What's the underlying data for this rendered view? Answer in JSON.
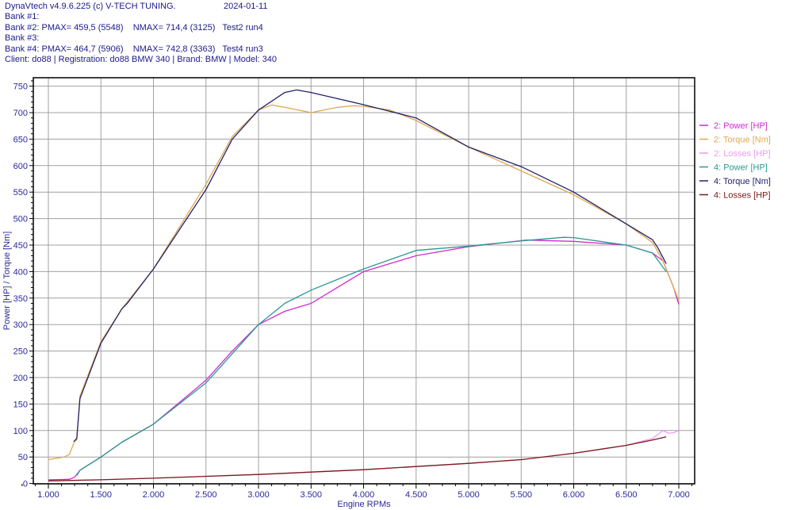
{
  "header": {
    "title": "DynaVtech v4.9.6.225 (c) V-TECH TUNING.",
    "date": "2024-01-11",
    "lines": [
      "Bank #1:",
      "Bank #2: PMAX= 459,5 (5548)    NMAX= 714,4 (3125)   Test2 run4",
      "Bank #3:",
      "Bank #4: PMAX= 464,7 (5906)    NMAX= 742,8 (3363)   Test4 run3",
      "Client: do88 | Registration: do88 BMW 340 | Brand: BMW | Model: 340"
    ]
  },
  "chart_data": {
    "type": "line",
    "xlabel": "Engine RPMs",
    "ylabel": "Power [HP] / Torque [Nm]",
    "xlim": [
      1000,
      7000
    ],
    "ylim": [
      0,
      750
    ],
    "xticks": [
      1000,
      1500,
      2000,
      2500,
      3000,
      3500,
      4000,
      4500,
      5000,
      5500,
      6000,
      6500,
      7000
    ],
    "xtick_labels": [
      "1.000",
      "1.500",
      "2.000",
      "2.500",
      "3.000",
      "3.500",
      "4.000",
      "4.500",
      "5.000",
      "5.500",
      "6.000",
      "6.500",
      "7.000"
    ],
    "yticks": [
      0,
      50,
      100,
      150,
      200,
      250,
      300,
      350,
      400,
      450,
      500,
      550,
      600,
      650,
      700,
      750
    ],
    "grid": true,
    "legend_position": "right",
    "series": [
      {
        "name": "2: Power [HP]",
        "color": "#d22bd2",
        "x": [
          1000,
          1200,
          1250,
          1300,
          1500,
          1700,
          2000,
          2500,
          2750,
          3000,
          3250,
          3500,
          3750,
          4000,
          4500,
          5000,
          5548,
          6000,
          6500,
          6750,
          6850,
          6950,
          7000
        ],
        "y": [
          7,
          8,
          12,
          25,
          50,
          78,
          112,
          195,
          250,
          300,
          325,
          340,
          370,
          400,
          430,
          447,
          459.5,
          457,
          450,
          435,
          420,
          370,
          338
        ]
      },
      {
        "name": "2: Torque [Nm]",
        "color": "#e0a850",
        "x": [
          1000,
          1150,
          1200,
          1250,
          1270,
          1300,
          1500,
          1700,
          2000,
          2500,
          2750,
          3000,
          3125,
          3250,
          3500,
          3750,
          3900,
          4000,
          4250,
          4500,
          5000,
          5500,
          6000,
          6500,
          6750,
          6850,
          6950,
          7000
        ],
        "y": [
          45,
          50,
          55,
          80,
          82,
          165,
          268,
          330,
          405,
          565,
          655,
          705,
          714.4,
          710,
          700,
          710,
          713,
          712,
          705,
          685,
          635,
          590,
          545,
          490,
          455,
          420,
          370,
          345
        ]
      },
      {
        "name": "2: Losses [HP]",
        "color": "#ee99ee",
        "x": [
          1000,
          1500,
          2000,
          3000,
          4000,
          5000,
          5500,
          6000,
          6500,
          6750,
          6800,
          6850,
          6900,
          6950,
          7000
        ],
        "y": [
          5,
          7,
          10,
          17,
          26,
          38,
          45,
          57,
          72,
          85,
          92,
          100,
          95,
          96,
          100
        ]
      },
      {
        "name": "4: Power [HP]",
        "color": "#2a9a90",
        "x": [
          1270,
          1300,
          1500,
          1700,
          2000,
          2500,
          2750,
          3000,
          3250,
          3500,
          3750,
          4000,
          4500,
          5000,
          5500,
          5906,
          6000,
          6500,
          6750,
          6880
        ],
        "y": [
          15,
          25,
          50,
          78,
          112,
          190,
          245,
          300,
          340,
          365,
          385,
          405,
          440,
          448,
          458,
          464.7,
          464,
          450,
          435,
          400
        ]
      },
      {
        "name": "4: Torque [Nm]",
        "color": "#22226e",
        "x": [
          1241,
          1270,
          1300,
          1500,
          1700,
          1750,
          2000,
          2500,
          2750,
          3000,
          3250,
          3363,
          3500,
          4000,
          4500,
          5000,
          5500,
          6000,
          6500,
          6750,
          6800,
          6880
        ],
        "y": [
          79,
          85,
          160,
          265,
          330,
          340,
          405,
          555,
          650,
          705,
          738,
          742.8,
          738,
          715,
          690,
          635,
          598,
          550,
          490,
          460,
          445,
          415
        ]
      },
      {
        "name": "4: Losses [HP]",
        "color": "#7a1a1a",
        "x": [
          1000,
          1500,
          2000,
          3000,
          4000,
          5000,
          5500,
          6000,
          6500,
          6750,
          6880
        ],
        "y": [
          5,
          7,
          10,
          17,
          26,
          38,
          45,
          57,
          72,
          82,
          88
        ]
      }
    ]
  }
}
